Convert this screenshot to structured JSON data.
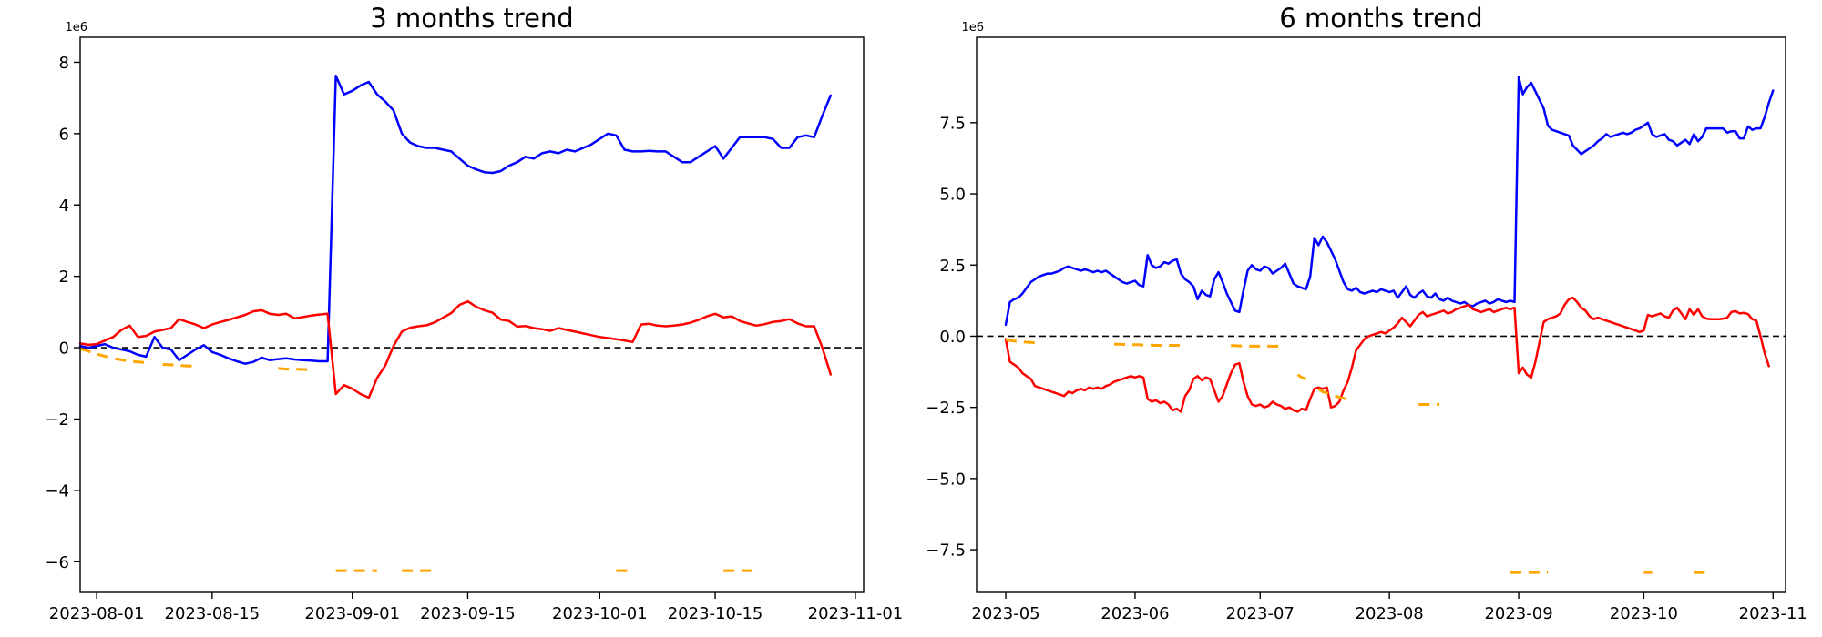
{
  "figure": {
    "background": "#ffffff",
    "axis_color": "#000000",
    "zero_line_color": "#000000"
  },
  "chart_data": [
    {
      "type": "line",
      "title": "3 months trend",
      "offset_label": "1e6",
      "unit_multiplier": 1000000,
      "legend": "none",
      "grid": false,
      "xlim": [
        "2023-07-30",
        "2023-11-02"
      ],
      "ylim": [
        -6.86,
        8.7
      ],
      "x_ticks": [
        {
          "date": "2023-08-01",
          "label": "2023-08-01"
        },
        {
          "date": "2023-08-15",
          "label": "2023-08-15"
        },
        {
          "date": "2023-09-01",
          "label": "2023-09-01"
        },
        {
          "date": "2023-09-15",
          "label": "2023-09-15"
        },
        {
          "date": "2023-10-01",
          "label": "2023-10-01"
        },
        {
          "date": "2023-10-15",
          "label": "2023-10-15"
        },
        {
          "date": "2023-11-01",
          "label": "2023-11-01"
        }
      ],
      "y_ticks": [
        {
          "value": 8,
          "label": "8"
        },
        {
          "value": 6,
          "label": "6"
        },
        {
          "value": 4,
          "label": "4"
        },
        {
          "value": 2,
          "label": "2"
        },
        {
          "value": 0,
          "label": "0"
        },
        {
          "value": -2,
          "label": "−2"
        },
        {
          "value": -4,
          "label": "−4"
        },
        {
          "value": -6,
          "label": "−6"
        }
      ],
      "zero_line": {
        "value": 0,
        "style": "dashed"
      },
      "series": [
        {
          "name": "blue-line",
          "color": "#0000ff",
          "style": "solid",
          "start": "2023-07-30",
          "step_days": 1,
          "values": [
            0.05,
            0.0,
            0.05,
            0.1,
            0.0,
            -0.05,
            -0.1,
            -0.2,
            -0.25,
            0.3,
            0.0,
            -0.05,
            -0.35,
            -0.2,
            -0.05,
            0.07,
            -0.12,
            -0.2,
            -0.3,
            -0.38,
            -0.45,
            -0.4,
            -0.28,
            -0.35,
            -0.32,
            -0.3,
            -0.33,
            -0.35,
            -0.36,
            -0.38,
            -0.38,
            7.62,
            7.1,
            7.2,
            7.35,
            7.45,
            7.1,
            6.9,
            6.65,
            6.0,
            5.75,
            5.65,
            5.6,
            5.6,
            5.55,
            5.5,
            5.3,
            5.1,
            5.0,
            4.92,
            4.9,
            4.95,
            5.1,
            5.2,
            5.35,
            5.3,
            5.45,
            5.5,
            5.45,
            5.55,
            5.5,
            5.6,
            5.7,
            5.85,
            6.0,
            5.95,
            5.55,
            5.5,
            5.5,
            5.52,
            5.5,
            5.5,
            5.35,
            5.2,
            5.2,
            5.35,
            5.5,
            5.65,
            5.3,
            5.6,
            5.9,
            5.9,
            5.9,
            5.9,
            5.85,
            5.6,
            5.6,
            5.9,
            5.95,
            5.9,
            6.5,
            7.07
          ]
        },
        {
          "name": "red-line",
          "color": "#ff0000",
          "style": "solid",
          "start": "2023-07-30",
          "step_days": 1,
          "values": [
            0.12,
            0.08,
            0.1,
            0.2,
            0.3,
            0.5,
            0.62,
            0.3,
            0.33,
            0.45,
            0.5,
            0.55,
            0.8,
            0.72,
            0.65,
            0.55,
            0.65,
            0.72,
            0.78,
            0.85,
            0.92,
            1.02,
            1.05,
            0.95,
            0.92,
            0.95,
            0.82,
            0.86,
            0.9,
            0.93,
            0.95,
            -1.3,
            -1.05,
            -1.15,
            -1.3,
            -1.4,
            -0.85,
            -0.5,
            0.05,
            0.45,
            0.56,
            0.6,
            0.63,
            0.71,
            0.84,
            0.97,
            1.2,
            1.3,
            1.15,
            1.05,
            0.98,
            0.79,
            0.75,
            0.59,
            0.61,
            0.55,
            0.52,
            0.47,
            0.55,
            0.5,
            0.45,
            0.4,
            0.35,
            0.3,
            0.27,
            0.24,
            0.2,
            0.16,
            0.65,
            0.67,
            0.62,
            0.6,
            0.62,
            0.65,
            0.7,
            0.78,
            0.88,
            0.95,
            0.85,
            0.88,
            0.75,
            0.68,
            0.62,
            0.66,
            0.72,
            0.75,
            0.8,
            0.68,
            0.6,
            0.6,
            0.0,
            -0.75
          ]
        },
        {
          "name": "orange-dashed-line",
          "color": "#ffa500",
          "style": "dashed",
          "start": "2023-07-30",
          "step_days": 1,
          "values": [
            -0.03,
            -0.1,
            -0.18,
            -0.24,
            -0.3,
            -0.34,
            -0.38,
            -0.4,
            -0.42,
            null,
            -0.47,
            -0.48,
            -0.5,
            -0.51,
            -0.52,
            null,
            null,
            null,
            null,
            null,
            null,
            null,
            null,
            null,
            -0.58,
            -0.6,
            -0.6,
            -0.61,
            -0.62,
            null,
            null,
            -6.25,
            -6.25,
            -6.25,
            -6.25,
            -6.25,
            -6.25,
            null,
            null,
            -6.25,
            -6.25,
            -6.25,
            -6.25,
            -6.25,
            null,
            null,
            null,
            null,
            null,
            null,
            null,
            null,
            null,
            null,
            null,
            null,
            null,
            null,
            null,
            null,
            null,
            null,
            null,
            null,
            null,
            -6.25,
            -6.25,
            -6.25,
            null,
            null,
            null,
            null,
            null,
            null,
            null,
            null,
            null,
            null,
            -6.25,
            -6.25,
            -6.25,
            -6.25,
            -6.25,
            null,
            null,
            null,
            null,
            null,
            null,
            null,
            null,
            null
          ]
        }
      ]
    },
    {
      "type": "line",
      "title": "6 months trend",
      "offset_label": "1e6",
      "unit_multiplier": 1000000,
      "legend": "none",
      "grid": false,
      "xlim": [
        "2023-04-24",
        "2023-11-04"
      ],
      "ylim": [
        -9.0,
        10.5
      ],
      "x_ticks": [
        {
          "date": "2023-05-01",
          "label": "2023-05"
        },
        {
          "date": "2023-06-01",
          "label": "2023-06"
        },
        {
          "date": "2023-07-01",
          "label": "2023-07"
        },
        {
          "date": "2023-08-01",
          "label": "2023-08"
        },
        {
          "date": "2023-09-01",
          "label": "2023-09"
        },
        {
          "date": "2023-10-01",
          "label": "2023-10"
        },
        {
          "date": "2023-11-01",
          "label": "2023-11"
        }
      ],
      "y_ticks": [
        {
          "value": 7.5,
          "label": "7.5"
        },
        {
          "value": 5.0,
          "label": "5.0"
        },
        {
          "value": 2.5,
          "label": "2.5"
        },
        {
          "value": 0.0,
          "label": "0.0"
        },
        {
          "value": -2.5,
          "label": "−2.5"
        },
        {
          "value": -5.0,
          "label": "−5.0"
        },
        {
          "value": -7.5,
          "label": "−7.5"
        }
      ],
      "zero_line": {
        "value": 0,
        "style": "dashed"
      },
      "series": [
        {
          "name": "blue-line",
          "color": "#0000ff",
          "style": "solid",
          "start": "2023-05-01",
          "step_days": 1,
          "values": [
            0.4,
            1.2,
            1.3,
            1.35,
            1.5,
            1.7,
            1.9,
            2.0,
            2.1,
            2.15,
            2.2,
            2.2,
            2.25,
            2.3,
            2.4,
            2.45,
            2.4,
            2.35,
            2.3,
            2.35,
            2.3,
            2.25,
            2.3,
            2.25,
            2.3,
            2.2,
            2.1,
            2.0,
            1.9,
            1.85,
            1.9,
            1.95,
            1.8,
            1.75,
            2.85,
            2.5,
            2.4,
            2.45,
            2.6,
            2.55,
            2.65,
            2.7,
            2.2,
            2.0,
            1.9,
            1.75,
            1.3,
            1.6,
            1.45,
            1.4,
            2.0,
            2.25,
            1.9,
            1.5,
            1.2,
            0.9,
            0.85,
            1.6,
            2.3,
            2.5,
            2.35,
            2.3,
            2.45,
            2.4,
            2.2,
            2.3,
            2.4,
            2.55,
            2.2,
            1.85,
            1.75,
            1.7,
            1.65,
            2.1,
            3.45,
            3.2,
            3.5,
            3.3,
            3.0,
            2.7,
            2.3,
            1.9,
            1.65,
            1.6,
            1.7,
            1.55,
            1.5,
            1.55,
            1.6,
            1.55,
            1.65,
            1.6,
            1.55,
            1.6,
            1.35,
            1.55,
            1.75,
            1.45,
            1.35,
            1.5,
            1.6,
            1.4,
            1.35,
            1.5,
            1.3,
            1.25,
            1.35,
            1.25,
            1.2,
            1.15,
            1.2,
            1.1,
            1.05,
            1.15,
            1.2,
            1.25,
            1.15,
            1.2,
            1.3,
            1.25,
            1.2,
            1.25,
            1.2,
            9.1,
            8.5,
            8.75,
            8.9,
            8.6,
            8.3,
            8.0,
            7.4,
            7.25,
            7.2,
            7.15,
            7.1,
            7.05,
            6.7,
            6.55,
            6.4,
            6.5,
            6.6,
            6.7,
            6.85,
            6.95,
            7.1,
            7.0,
            7.05,
            7.1,
            7.15,
            7.1,
            7.15,
            7.25,
            7.3,
            7.4,
            7.5,
            7.1,
            7.0,
            7.05,
            7.1,
            6.9,
            6.85,
            6.7,
            6.8,
            6.9,
            6.75,
            7.1,
            6.85,
            7.0,
            7.3,
            7.3,
            7.3,
            7.3,
            7.3,
            7.15,
            7.2,
            7.2,
            6.95,
            6.95,
            7.37,
            7.25,
            7.3,
            7.3,
            7.7,
            8.2,
            8.63
          ]
        },
        {
          "name": "red-line",
          "color": "#ff0000",
          "style": "solid",
          "start": "2023-05-01",
          "step_days": 1,
          "values": [
            -0.1,
            -0.9,
            -1.0,
            -1.1,
            -1.3,
            -1.4,
            -1.5,
            -1.75,
            -1.8,
            -1.85,
            -1.9,
            -1.95,
            -2.0,
            -2.05,
            -2.1,
            -1.95,
            -2.0,
            -1.9,
            -1.85,
            -1.9,
            -1.8,
            -1.85,
            -1.8,
            -1.85,
            -1.75,
            -1.7,
            -1.6,
            -1.55,
            -1.5,
            -1.45,
            -1.4,
            -1.45,
            -1.4,
            -1.45,
            -2.2,
            -2.3,
            -2.25,
            -2.35,
            -2.3,
            -2.4,
            -2.6,
            -2.55,
            -2.65,
            -2.1,
            -1.9,
            -1.5,
            -1.4,
            -1.55,
            -1.45,
            -1.5,
            -1.9,
            -2.3,
            -2.1,
            -1.7,
            -1.3,
            -1.0,
            -0.95,
            -1.6,
            -2.1,
            -2.4,
            -2.45,
            -2.4,
            -2.5,
            -2.45,
            -2.3,
            -2.4,
            -2.45,
            -2.55,
            -2.5,
            -2.6,
            -2.65,
            -2.55,
            -2.6,
            -2.2,
            -1.85,
            -1.8,
            -1.85,
            -1.8,
            -2.5,
            -2.45,
            -2.3,
            -1.9,
            -1.6,
            -1.1,
            -0.5,
            -0.3,
            -0.1,
            0.0,
            0.05,
            0.1,
            0.15,
            0.1,
            0.2,
            0.3,
            0.45,
            0.65,
            0.5,
            0.35,
            0.55,
            0.75,
            0.85,
            0.7,
            0.75,
            0.8,
            0.85,
            0.9,
            0.8,
            0.85,
            0.95,
            1.0,
            1.05,
            1.1,
            0.95,
            0.9,
            0.85,
            0.9,
            0.95,
            0.85,
            0.9,
            0.95,
            1.0,
            0.95,
            1.0,
            -1.3,
            -1.1,
            -1.35,
            -1.45,
            -0.9,
            -0.2,
            0.5,
            0.6,
            0.65,
            0.7,
            0.8,
            1.1,
            1.3,
            1.35,
            1.2,
            1.0,
            0.9,
            0.7,
            0.6,
            0.65,
            0.6,
            0.55,
            0.5,
            0.45,
            0.4,
            0.35,
            0.3,
            0.25,
            0.2,
            0.15,
            0.2,
            0.75,
            0.7,
            0.75,
            0.8,
            0.7,
            0.65,
            0.9,
            1.0,
            0.8,
            0.6,
            0.95,
            0.75,
            0.95,
            0.7,
            0.62,
            0.6,
            0.6,
            0.6,
            0.62,
            0.65,
            0.85,
            0.88,
            0.8,
            0.82,
            0.78,
            0.6,
            0.55,
            0.0,
            -0.6,
            -1.05,
            null
          ]
        },
        {
          "name": "orange-dashed-line",
          "color": "#ffa500",
          "style": "dashed",
          "start": "2023-05-01",
          "step_days": 1,
          "values": [
            -0.12,
            -0.15,
            -0.17,
            -0.19,
            -0.2,
            -0.21,
            -0.22,
            -0.23,
            -0.25,
            null,
            null,
            null,
            null,
            null,
            null,
            null,
            null,
            null,
            null,
            null,
            null,
            null,
            null,
            null,
            null,
            null,
            -0.28,
            -0.28,
            -0.29,
            -0.29,
            -0.3,
            -0.3,
            -0.3,
            -0.31,
            -0.31,
            -0.31,
            -0.32,
            -0.32,
            -0.32,
            -0.32,
            -0.32,
            -0.32,
            -0.32,
            -0.32,
            null,
            null,
            null,
            null,
            null,
            null,
            null,
            null,
            null,
            null,
            -0.33,
            -0.33,
            -0.34,
            -0.34,
            -0.34,
            -0.35,
            -0.35,
            -0.35,
            -0.35,
            -0.35,
            -0.35,
            -0.35,
            -0.35,
            null,
            null,
            null,
            -1.35,
            -1.45,
            -1.5,
            null,
            null,
            -1.85,
            -1.95,
            -2.0,
            -2.05,
            -2.1,
            -2.15,
            -2.18,
            -2.22,
            -2.25,
            null,
            null,
            null,
            null,
            null,
            null,
            null,
            null,
            null,
            null,
            null,
            null,
            null,
            null,
            null,
            -2.4,
            -2.4,
            -2.4,
            -2.4,
            -2.4,
            -2.4,
            null,
            null,
            null,
            null,
            null,
            null,
            null,
            null,
            null,
            null,
            null,
            null,
            null,
            null,
            null,
            null,
            -8.3,
            -8.3,
            -8.3,
            -8.3,
            -8.3,
            -8.3,
            -8.3,
            -8.3,
            -8.3,
            -8.3,
            null,
            null,
            null,
            null,
            null,
            null,
            null,
            null,
            null,
            null,
            null,
            null,
            null,
            null,
            null,
            null,
            null,
            null,
            null,
            null,
            null,
            null,
            -8.3,
            -8.3,
            -8.3,
            null,
            null,
            null,
            null,
            null,
            null,
            null,
            null,
            null,
            -8.3,
            -8.3,
            -8.3,
            -8.3,
            null,
            null,
            null,
            null,
            null,
            null,
            null,
            null,
            null,
            null,
            null,
            null,
            null,
            null,
            null
          ]
        }
      ]
    }
  ]
}
